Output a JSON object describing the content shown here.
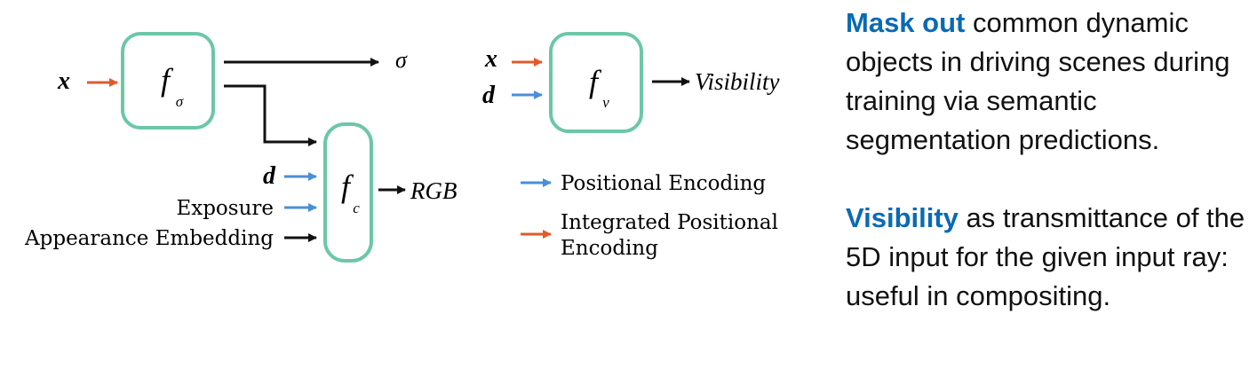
{
  "colors": {
    "box_stroke": "#6cc7a6",
    "arrow_orange": "#e05a2b",
    "arrow_blue": "#4a8fd6",
    "arrow_black": "#111111",
    "highlight_blue": "#0a6ab5"
  },
  "diagram": {
    "f_sigma": {
      "inputs": {
        "x": "x"
      },
      "func": "f",
      "sub": "σ",
      "output": "σ"
    },
    "f_c": {
      "inputs": {
        "d": "d",
        "exposure": "Exposure",
        "appearance": "Appearance Embedding"
      },
      "func": "f",
      "sub": "c",
      "output": "RGB"
    },
    "f_v": {
      "inputs": {
        "x": "x",
        "d": "d"
      },
      "func": "f",
      "sub": "v",
      "output": "Visibility"
    },
    "legend": {
      "positional": "Positional Encoding",
      "integrated_line1": "Integrated Positional",
      "integrated_line2": "Encoding"
    }
  },
  "side_text": {
    "p1_highlight": "Mask out",
    "p1_rest": " common dynamic objects in driving scenes during training via semantic segmentation predictions.",
    "p2_highlight": "Visibility",
    "p2_rest": " as transmittance of the 5D input for the given input ray: useful in compositing."
  }
}
